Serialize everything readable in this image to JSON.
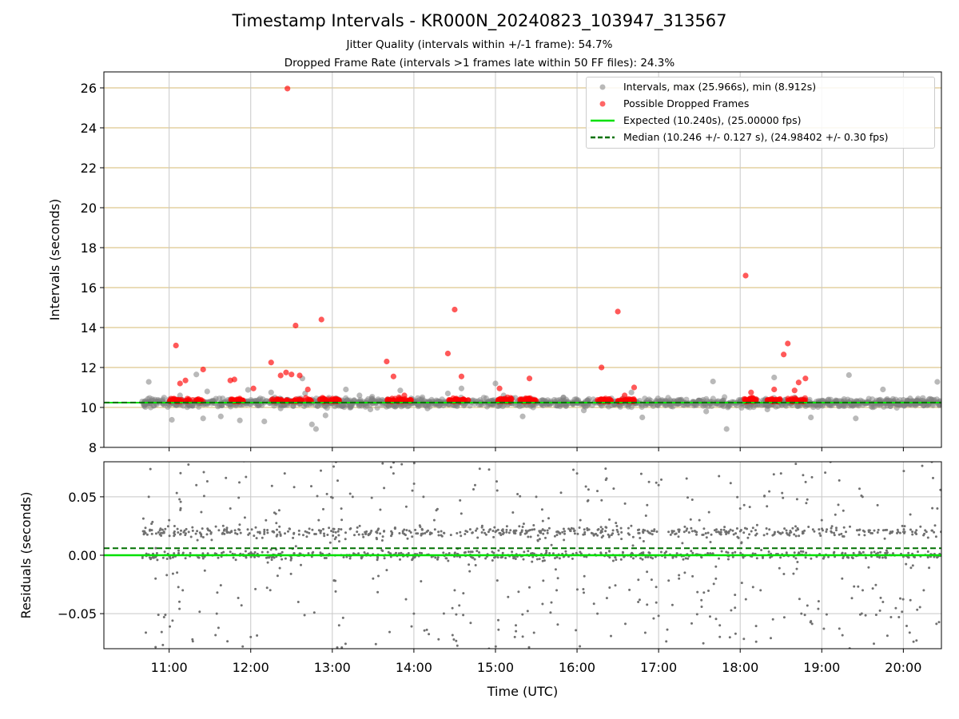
{
  "page": {
    "title": "Timestamp Intervals - KR000N_20240823_103947_313567",
    "subtitle_1": "Jitter Quality (intervals within +/-1 frame): 54.7%",
    "subtitle_2": "Dropped Frame Rate (intervals >1 frames late within 50 FF files): 24.3%"
  },
  "colors": {
    "intervals": "#808080",
    "dropped": "#ff0000",
    "expected": "#00e000",
    "median": "#007000",
    "top_grid": "#d4b870",
    "grid": "#c8c8c8",
    "residuals": "#707070"
  },
  "chart_data": [
    {
      "type": "scatter",
      "panel": "top",
      "ylabel": "Intervals (seconds)",
      "ylim": [
        8,
        26.8
      ],
      "xlim": [
        "10:12",
        "20:28"
      ],
      "grid": true,
      "legend_position": "top-right",
      "yticks": [
        "8",
        "10",
        "12",
        "14",
        "16",
        "18",
        "20",
        "22",
        "24",
        "26"
      ],
      "series": [
        {
          "name": "Intervals, max (25.966s), min (8.912s)",
          "x": [
            "10:45",
            "10:52",
            "11:02",
            "11:08",
            "11:15",
            "11:20",
            "11:25",
            "11:28",
            "11:33",
            "11:38",
            "11:45",
            "11:52",
            "11:58",
            "12:05",
            "12:10",
            "12:15",
            "12:22",
            "12:30",
            "12:38",
            "12:40",
            "12:45",
            "12:48",
            "12:55",
            "13:03",
            "13:10",
            "13:20",
            "13:28",
            "13:40",
            "13:50",
            "13:58",
            "14:10",
            "14:25",
            "14:35",
            "14:50",
            "15:00",
            "15:06",
            "15:20",
            "15:35",
            "15:50",
            "16:05",
            "16:20",
            "16:40",
            "16:48",
            "17:05",
            "17:25",
            "17:35",
            "17:40",
            "17:50",
            "18:05",
            "18:20",
            "18:25",
            "18:40",
            "18:52",
            "19:10",
            "19:20",
            "19:25",
            "19:45",
            "20:05",
            "20:15",
            "20:25"
          ],
          "y": [
            11.28,
            10.3,
            9.38,
            10.6,
            10.08,
            11.65,
            9.45,
            10.8,
            10.22,
            9.55,
            10.4,
            9.35,
            10.88,
            10.1,
            9.3,
            10.75,
            9.95,
            10.3,
            11.45,
            10.7,
            9.15,
            8.92,
            9.6,
            10.2,
            10.9,
            10.6,
            9.9,
            10.35,
            10.85,
            10.45,
            9.95,
            10.7,
            10.95,
            10.15,
            11.2,
            10.6,
            9.55,
            10.1,
            10.5,
            9.85,
            10.25,
            10.75,
            9.5,
            10.1,
            10.2,
            9.8,
            11.3,
            8.92,
            10.1,
            9.9,
            11.5,
            10.5,
            9.5,
            10.3,
            11.62,
            9.45,
            10.9,
            10.45,
            10.1,
            11.28
          ]
        },
        {
          "name": "Possible Dropped Frames",
          "x": [
            "11:05",
            "11:08",
            "11:12",
            "11:25",
            "11:45",
            "11:48",
            "12:02",
            "12:15",
            "12:22",
            "12:26",
            "12:30",
            "12:33",
            "12:36",
            "12:42",
            "12:52",
            "13:40",
            "13:45",
            "13:53",
            "14:25",
            "14:30",
            "14:35",
            "15:03",
            "15:25",
            "16:18",
            "16:30",
            "16:35",
            "16:42",
            "18:04",
            "18:08",
            "18:25",
            "18:32",
            "18:35",
            "18:40",
            "18:43",
            "18:48"
          ],
          "y": [
            13.1,
            11.2,
            11.35,
            11.9,
            11.35,
            11.4,
            10.95,
            12.25,
            11.6,
            11.75,
            11.65,
            14.1,
            11.6,
            10.9,
            14.4,
            12.3,
            11.55,
            10.6,
            12.7,
            14.9,
            11.55,
            10.95,
            11.45,
            12.0,
            14.8,
            10.6,
            11.0,
            16.6,
            10.75,
            10.9,
            12.65,
            13.2,
            10.85,
            11.25,
            11.45
          ]
        }
      ],
      "outlier_max": {
        "x": "12:27",
        "y": 25.966
      },
      "expected_line": {
        "name": "Expected (10.240s), (25.00000 fps)",
        "value": 10.24
      },
      "median_line": {
        "name": "Median (10.246 +/- 0.127 s), (24.98402 +/- 0.30 fps)",
        "value": 10.246
      }
    },
    {
      "type": "scatter",
      "panel": "bottom",
      "xlabel": "Time (UTC)",
      "ylabel": "Residuals (seconds)",
      "ylim": [
        -0.08,
        0.08
      ],
      "xlim": [
        "10:12",
        "20:28"
      ],
      "grid": true,
      "yticks": [
        "−0.05",
        "0.00",
        "0.05"
      ],
      "xticks": [
        "11:00",
        "12:00",
        "13:00",
        "14:00",
        "15:00",
        "16:00",
        "17:00",
        "18:00",
        "19:00",
        "20:00"
      ],
      "expected_residual": 0.0,
      "median_residual": 0.006,
      "series": [
        {
          "name": "Residuals",
          "x": [
            "10:45",
            "10:50",
            "11:00",
            "11:10",
            "11:20",
            "11:35",
            "11:45",
            "12:00",
            "12:10",
            "12:25",
            "12:35",
            "12:50",
            "13:05",
            "13:15",
            "13:30",
            "13:45",
            "14:00",
            "14:15",
            "14:30",
            "14:45",
            "15:00",
            "15:15",
            "15:30",
            "15:45",
            "16:00",
            "16:15",
            "16:30",
            "16:45",
            "17:00",
            "17:15",
            "17:30",
            "17:45",
            "18:00",
            "18:15",
            "18:30",
            "18:45",
            "19:00",
            "19:15",
            "19:30",
            "19:45",
            "20:00",
            "20:15",
            "20:25"
          ],
          "y": [
            0.05,
            -0.02,
            0.03,
            -0.03,
            0.06,
            -0.05,
            0.04,
            -0.07,
            0.02,
            0.07,
            -0.04,
            0.03,
            -0.06,
            0.05,
            -0.02,
            0.07,
            -0.05,
            0.03,
            -0.03,
            0.06,
            0.02,
            -0.06,
            0.05,
            -0.03,
            0.07,
            -0.05,
            0.02,
            -0.04,
            0.06,
            -0.02,
            0.03,
            -0.06,
            0.04,
            -0.03,
            0.07,
            -0.05,
            0.03,
            -0.02,
            0.05,
            -0.04,
            0.02,
            -0.03,
            0.04
          ]
        }
      ]
    }
  ]
}
